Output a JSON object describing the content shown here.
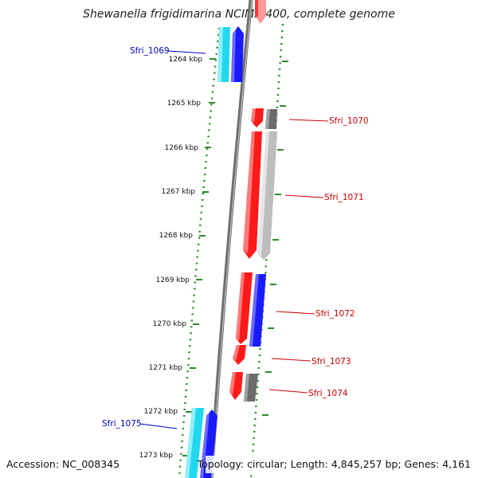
{
  "title": "Shewanella frigidimarina NCIMB 400, complete genome",
  "footer": {
    "accession": "Accession: NC_008345",
    "topology": "Topology: circular; Length: 4,845,257 bp; Genes: 4,161"
  },
  "colors": {
    "backbone": "#8a8a8a",
    "ticks": "#2e8b2e",
    "label_forward": "#0000cc",
    "label_reverse": "#cc0000",
    "cds_red": "#ff1a1a",
    "cds_blue": "#1a1aff",
    "cds_cyan": "#22d8ee",
    "cds_grey": "#777777",
    "cds_light_grey": "#bdbdbd"
  },
  "map": {
    "kbp_labels": [
      "1264 kbp",
      "1265 kbp",
      "1266 kbp",
      "1267 kbp",
      "1268 kbp",
      "1269 kbp",
      "1270 kbp",
      "1271 kbp",
      "1272 kbp",
      "1273 kbp"
    ],
    "genes": [
      {
        "label": "Sfri_1069",
        "strand": "forward"
      },
      {
        "label": "Sfri_1070",
        "strand": "reverse"
      },
      {
        "label": "Sfri_1071",
        "strand": "reverse"
      },
      {
        "label": "Sfri_1072",
        "strand": "reverse"
      },
      {
        "label": "Sfri_1073",
        "strand": "reverse"
      },
      {
        "label": "Sfri_1074",
        "strand": "reverse"
      },
      {
        "label": "Sfri_1075",
        "strand": "forward"
      }
    ]
  }
}
